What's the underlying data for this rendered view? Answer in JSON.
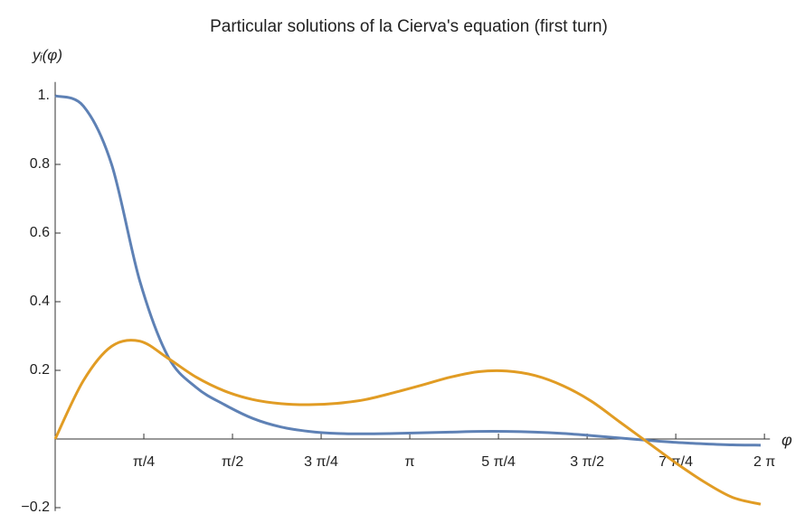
{
  "chart_data": {
    "type": "line",
    "title": "Particular solutions of la Cierva's equation (first turn)",
    "y_label": "yᵢ(φ)",
    "x_label": "φ",
    "x": [
      0,
      0.25,
      0.5,
      0.75,
      1.0,
      1.25,
      1.5,
      1.75,
      2.0,
      2.25,
      2.5,
      2.75,
      3.0,
      3.25,
      3.5,
      3.75,
      4.0,
      4.25,
      4.5,
      4.75,
      5.0,
      5.25,
      5.5,
      5.75,
      6.0,
      6.25
    ],
    "series": [
      {
        "color": "#5e81b5",
        "values": [
          1.0,
          0.97,
          0.8,
          0.46,
          0.24,
          0.15,
          0.1,
          0.06,
          0.035,
          0.022,
          0.016,
          0.015,
          0.016,
          0.018,
          0.02,
          0.022,
          0.022,
          0.02,
          0.016,
          0.01,
          0.003,
          -0.004,
          -0.01,
          -0.014,
          -0.017,
          -0.018
        ]
      },
      {
        "color": "#e19c24",
        "values": [
          0,
          0.17,
          0.27,
          0.285,
          0.235,
          0.18,
          0.14,
          0.115,
          0.103,
          0.1,
          0.104,
          0.115,
          0.135,
          0.157,
          0.18,
          0.196,
          0.198,
          0.185,
          0.155,
          0.11,
          0.05,
          -0.01,
          -0.07,
          -0.125,
          -0.17,
          -0.19
        ]
      }
    ],
    "xlim": [
      0,
      6.3
    ],
    "ylim": [
      -0.21,
      1.04
    ],
    "xticks": [
      {
        "value": 0.785398,
        "label": "π/4"
      },
      {
        "value": 1.570796,
        "label": "π/2"
      },
      {
        "value": 2.356194,
        "label": "3 π/4"
      },
      {
        "value": 3.141593,
        "label": "π"
      },
      {
        "value": 3.926991,
        "label": "5 π/4"
      },
      {
        "value": 4.712389,
        "label": "3 π/2"
      },
      {
        "value": 5.497787,
        "label": "7 π/4"
      },
      {
        "value": 6.283185,
        "label": "2 π"
      }
    ],
    "yticks": [
      {
        "value": -0.2,
        "label": "−0.2"
      },
      0.2,
      0.4,
      0.6,
      0.8,
      {
        "value": 1,
        "label": "1."
      }
    ],
    "grid": false
  }
}
